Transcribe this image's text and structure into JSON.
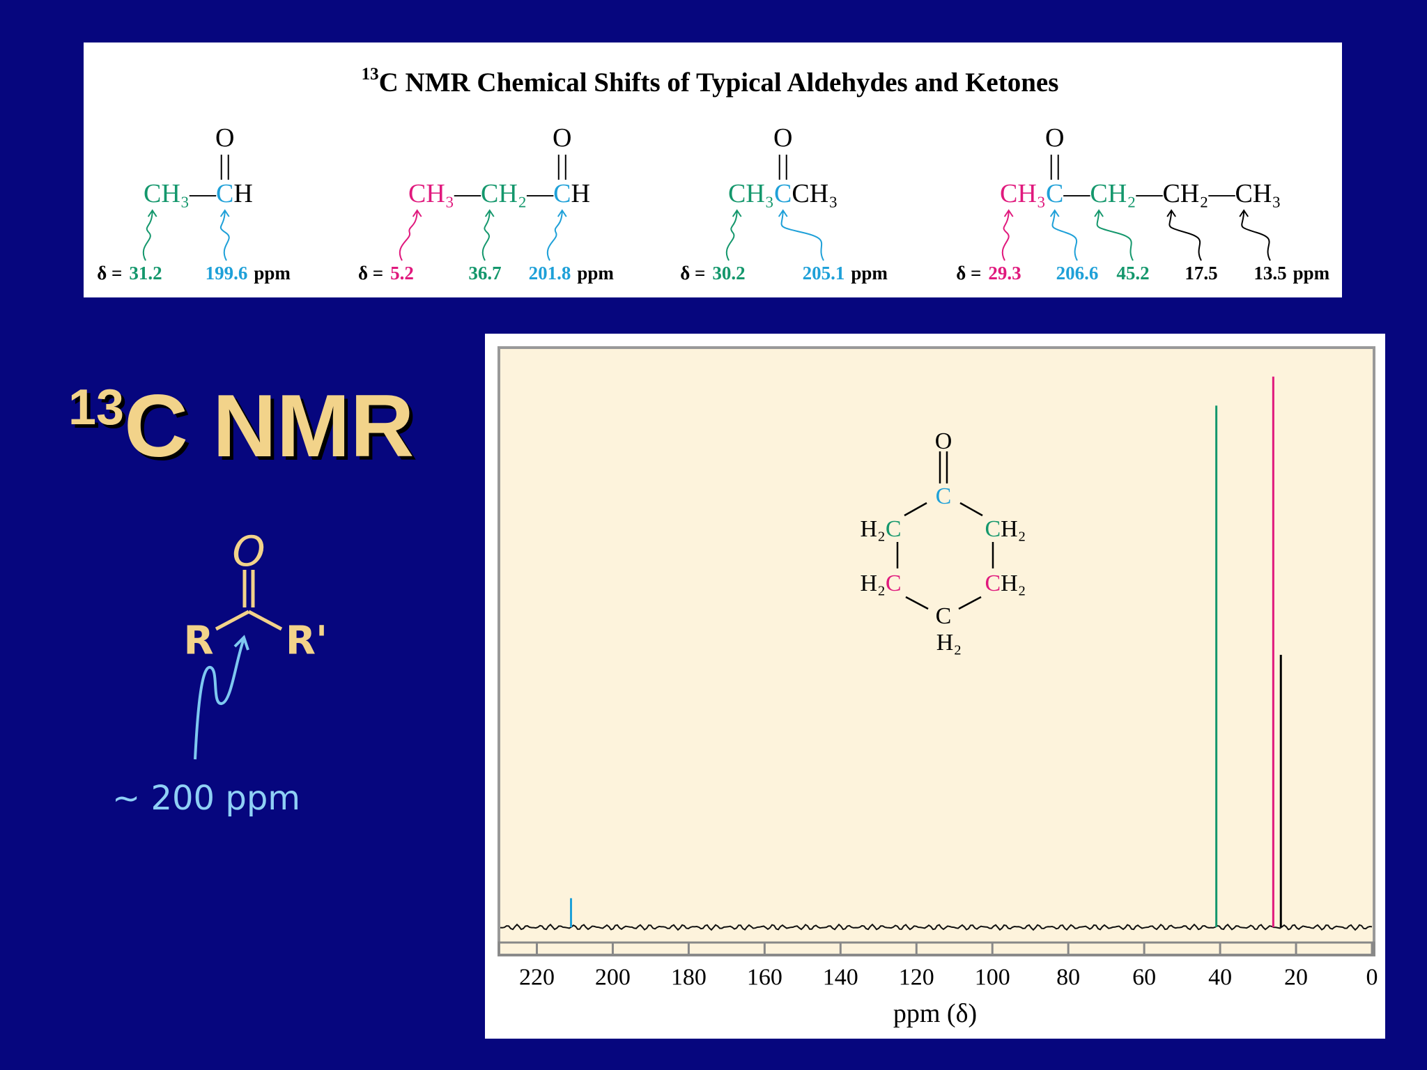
{
  "slide_title": {
    "sup": "13",
    "text": "C NMR"
  },
  "carbonyl_sketch": {
    "oxygen": "O",
    "r1": "R",
    "r2": "R'",
    "note": "~ 200 ppm"
  },
  "shift_table": {
    "title_sup": "13",
    "title": "C NMR Chemical Shifts of Typical Aldehydes and Ketones",
    "delta_label": "δ =",
    "unit": "ppm",
    "molecules": [
      {
        "pieces": [
          {
            "text": "CH₃",
            "color": "#14976c",
            "shift": 31.2
          },
          {
            "text": "—",
            "color": "#000000"
          },
          {
            "text": "C",
            "color": "#1ea0d8",
            "above": "O",
            "shift": 199.6
          },
          {
            "text": "H",
            "color": "#000000"
          }
        ]
      },
      {
        "pieces": [
          {
            "text": "CH₃",
            "color": "#e0197d",
            "shift": 5.2
          },
          {
            "text": "—",
            "color": "#000000"
          },
          {
            "text": "CH₂",
            "color": "#14976c",
            "shift": 36.7
          },
          {
            "text": "—",
            "color": "#000000"
          },
          {
            "text": "C",
            "color": "#1ea0d8",
            "above": "O",
            "shift": 201.8
          },
          {
            "text": "H",
            "color": "#000000"
          }
        ]
      },
      {
        "pieces": [
          {
            "text": "CH₃",
            "color": "#14976c",
            "shift": 30.2
          },
          {
            "text": "C",
            "color": "#1ea0d8",
            "above": "O",
            "shift": 205.1
          },
          {
            "text": "CH₃",
            "color": "#000000"
          }
        ]
      },
      {
        "pieces": [
          {
            "text": "CH₃",
            "color": "#e0197d",
            "shift": 29.3
          },
          {
            "text": "C",
            "color": "#1ea0d8",
            "above": "O",
            "shift": 206.6
          },
          {
            "text": "—",
            "color": "#000000"
          },
          {
            "text": "CH₂",
            "color": "#14976c",
            "shift": 45.2
          },
          {
            "text": "—",
            "color": "#000000"
          },
          {
            "text": "CH₂",
            "color": "#000000",
            "shift": 17.5
          },
          {
            "text": "—",
            "color": "#000000"
          },
          {
            "text": "CH₃",
            "color": "#000000",
            "shift": 13.5
          }
        ]
      }
    ]
  },
  "cyclohexanone": {
    "atoms": [
      {
        "parts": [
          "O"
        ],
        "colors": [
          "#000000"
        ]
      },
      {
        "parts": [
          "C"
        ],
        "colors": [
          "#1ea0d8"
        ]
      },
      {
        "parts": [
          "H₂",
          "C"
        ],
        "colors": [
          "#000000",
          "#14976c"
        ]
      },
      {
        "parts": [
          "C",
          "H₂"
        ],
        "colors": [
          "#14976c",
          "#000000"
        ]
      },
      {
        "parts": [
          "H₂",
          "C"
        ],
        "colors": [
          "#000000",
          "#e0197d"
        ]
      },
      {
        "parts": [
          "C",
          "H₂"
        ],
        "colors": [
          "#e0197d",
          "#000000"
        ]
      },
      {
        "parts": [
          "C"
        ],
        "colors": [
          "#000000"
        ]
      },
      {
        "parts": [
          "H₂"
        ],
        "colors": [
          "#000000"
        ]
      }
    ]
  },
  "chart_data": {
    "type": "stick",
    "x_label": "ppm (δ)",
    "x": [
      211,
      41,
      26,
      24
    ],
    "values": [
      5,
      90,
      95,
      47
    ],
    "colors": [
      "#1ea0d8",
      "#14976c",
      "#e0197d",
      "#000000"
    ],
    "xlim": [
      230,
      0
    ],
    "ylim": [
      0,
      100
    ],
    "xticks": [
      220,
      200,
      180,
      160,
      140,
      120,
      100,
      80,
      60,
      40,
      20,
      0
    ]
  }
}
